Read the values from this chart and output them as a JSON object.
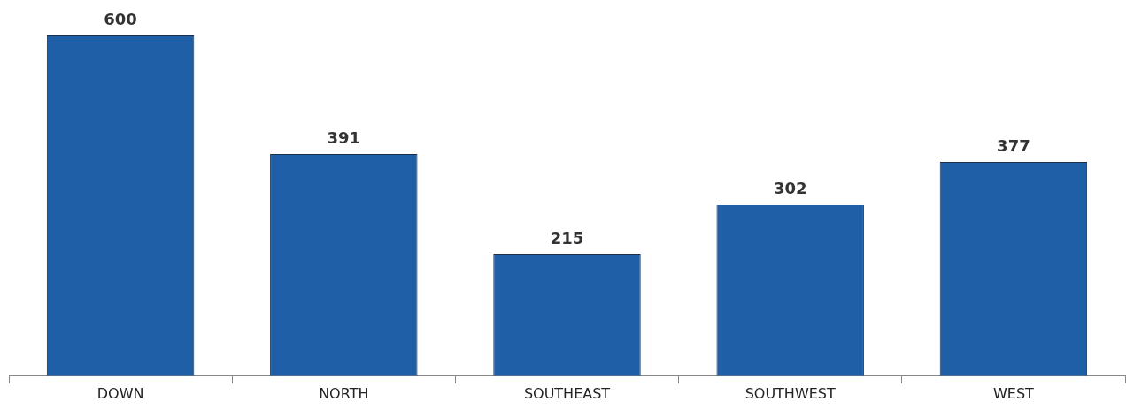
{
  "chart_data": {
    "type": "bar",
    "categories": [
      "DOWN",
      "NORTH",
      "SOUTHEAST",
      "SOUTHWEST",
      "WEST"
    ],
    "values": [
      600,
      391,
      215,
      302,
      377
    ],
    "color": "#1f5fa8",
    "data_labels": true,
    "grid": false,
    "legend": false
  }
}
